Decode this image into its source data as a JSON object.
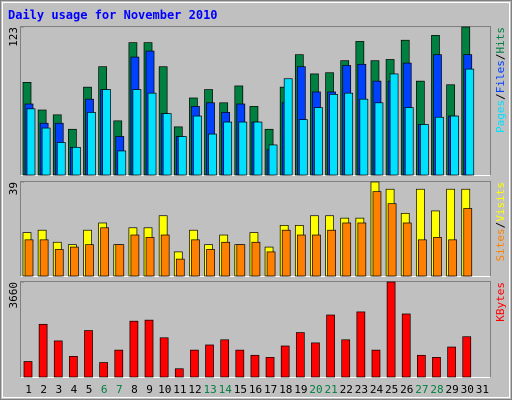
{
  "chart_data": {
    "type": "bar",
    "title": "Daily usage for November 2010",
    "categories": [
      "1",
      "2",
      "3",
      "4",
      "5",
      "6",
      "7",
      "8",
      "9",
      "10",
      "11",
      "12",
      "13",
      "14",
      "15",
      "16",
      "17",
      "18",
      "19",
      "20",
      "21",
      "22",
      "23",
      "24",
      "25",
      "26",
      "27",
      "28",
      "29",
      "30",
      "31"
    ],
    "category_colors": [
      "#000000",
      "#000000",
      "#000000",
      "#000000",
      "#000000",
      "#008040",
      "#008040",
      "#000000",
      "#000000",
      "#000000",
      "#000000",
      "#000000",
      "#008040",
      "#008040",
      "#000000",
      "#000000",
      "#000000",
      "#000000",
      "#000000",
      "#008040",
      "#008040",
      "#000000",
      "#000000",
      "#000000",
      "#000000",
      "#000000",
      "#008040",
      "#008040",
      "#000000",
      "#000000",
      "#000000"
    ],
    "panels": [
      {
        "ylim": [
          0,
          123
        ],
        "yticks": [
          123
        ],
        "legend_separator": "/",
        "series": [
          {
            "name": "Pages",
            "color": "#00e0ff",
            "values": [
              55,
              39,
              27,
              23,
              52,
              71,
              20,
              71,
              68,
              51,
              32,
              49,
              34,
              44,
              44,
              44,
              25,
              80,
              46,
              56,
              67,
              68,
              63,
              60,
              84,
              56,
              42,
              48,
              49,
              88,
              null
            ]
          },
          {
            "name": "Files",
            "color": "#0040ff",
            "values": [
              59,
              43,
              43,
              23,
              63,
              71,
              32,
              98,
              103,
              51,
              32,
              57,
              60,
              52,
              59,
              44,
              21,
              60,
              90,
              69,
              69,
              91,
              92,
              78,
              78,
              93,
              42,
              100,
              49,
              100,
              null
            ]
          },
          {
            "name": "Hits",
            "color": "#008040",
            "values": [
              77,
              54,
              50,
              38,
              73,
              90,
              45,
              110,
              110,
              90,
              40,
              64,
              71,
              60,
              74,
              57,
              38,
              73,
              100,
              84,
              85,
              95,
              111,
              95,
              96,
              112,
              78,
              116,
              75,
              123,
              null
            ]
          }
        ]
      },
      {
        "ylim": [
          0,
          39
        ],
        "yticks": [
          39
        ],
        "legend_separator": "/",
        "series": [
          {
            "name": "Sites",
            "color": "#ff8000",
            "values": [
              15,
              15,
              11,
              12,
              13,
              20,
              13,
              17,
              16,
              17,
              7,
              15,
              11,
              14,
              13,
              14,
              10,
              19,
              17,
              17,
              19,
              22,
              22,
              35,
              30,
              22,
              15,
              16,
              15,
              28,
              null
            ]
          },
          {
            "name": "Visits",
            "color": "#ffff00",
            "values": [
              18,
              19,
              14,
              13,
              19,
              22,
              13,
              20,
              20,
              25,
              10,
              19,
              13,
              17,
              13,
              18,
              12,
              21,
              21,
              25,
              25,
              24,
              24,
              39,
              36,
              26,
              36,
              27,
              36,
              36,
              null
            ]
          }
        ]
      },
      {
        "ylim": [
          0,
          3660
        ],
        "yticks": [
          3660
        ],
        "legend_separator": "/",
        "series": [
          {
            "name": "KBytes",
            "color": "#ff0000",
            "values": [
              597,
              2030,
              1390,
              796,
              1790,
              557,
              1035,
              2150,
              2190,
              1510,
              318,
              1035,
              1234,
              1433,
              1035,
              836,
              756,
              1194,
              1711,
              1313,
              2388,
              1433,
              2507,
              1035,
              3660,
              2428,
              836,
              756,
              1154,
              1552,
              null
            ]
          }
        ]
      }
    ]
  }
}
